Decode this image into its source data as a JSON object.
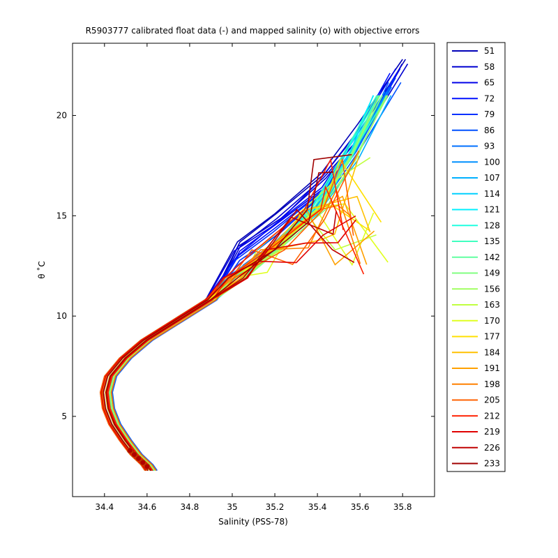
{
  "chart_data": {
    "type": "line",
    "title": "R5903777 calibrated float data (-) and mapped salinity (o) with objective errors",
    "xlabel": "Salinity (PSS-78)",
    "ylabel": "θ ˚C",
    "xlim": [
      34.25,
      35.95
    ],
    "ylim": [
      1,
      23.6
    ],
    "xticks": [
      "34.4",
      "34.6",
      "34.8",
      "35",
      "35.2",
      "35.4",
      "35.6",
      "35.8"
    ],
    "yticks": [
      "5",
      "10",
      "15",
      "20"
    ],
    "grid": false,
    "legend_position": "right-outside",
    "legend": [
      "51",
      "58",
      "65",
      "72",
      "79",
      "86",
      "93",
      "100",
      "107",
      "114",
      "121",
      "128",
      "135",
      "142",
      "149",
      "156",
      "163",
      "170",
      "177",
      "184",
      "191",
      "198",
      "205",
      "212",
      "219",
      "226",
      "233"
    ],
    "legend_colors": [
      "#0000b8",
      "#0000d0",
      "#0000e8",
      "#0010ff",
      "#0030ff",
      "#0050ff",
      "#0070ff",
      "#0090ff",
      "#00b0ff",
      "#00d0ff",
      "#00f0ff",
      "#20ffe0",
      "#40ffc0",
      "#60ffa0",
      "#80ff80",
      "#a0ff60",
      "#c0ff40",
      "#e0ff20",
      "#ffe000",
      "#ffc000",
      "#ffa000",
      "#ff8000",
      "#ff6000",
      "#ff2000",
      "#e00000",
      "#c00000",
      "#a00000"
    ],
    "series_profile": {
      "s": [
        34.62,
        34.6,
        34.55,
        34.5,
        34.45,
        34.42,
        34.41,
        34.43,
        34.5,
        34.6,
        34.75,
        34.9,
        35.03,
        35.2,
        35.4,
        35.55,
        35.7
      ],
      "theta": [
        2.3,
        2.6,
        3.1,
        3.8,
        4.6,
        5.4,
        6.2,
        7.0,
        7.9,
        8.8,
        9.8,
        10.8,
        11.9,
        13.3,
        15.3,
        17.8,
        21.0
      ]
    },
    "mapped_points": {
      "s": [
        34.52,
        34.54,
        34.56,
        34.58,
        34.6
      ],
      "theta": [
        3.3,
        3.1,
        2.9,
        2.7,
        2.5
      ]
    }
  }
}
